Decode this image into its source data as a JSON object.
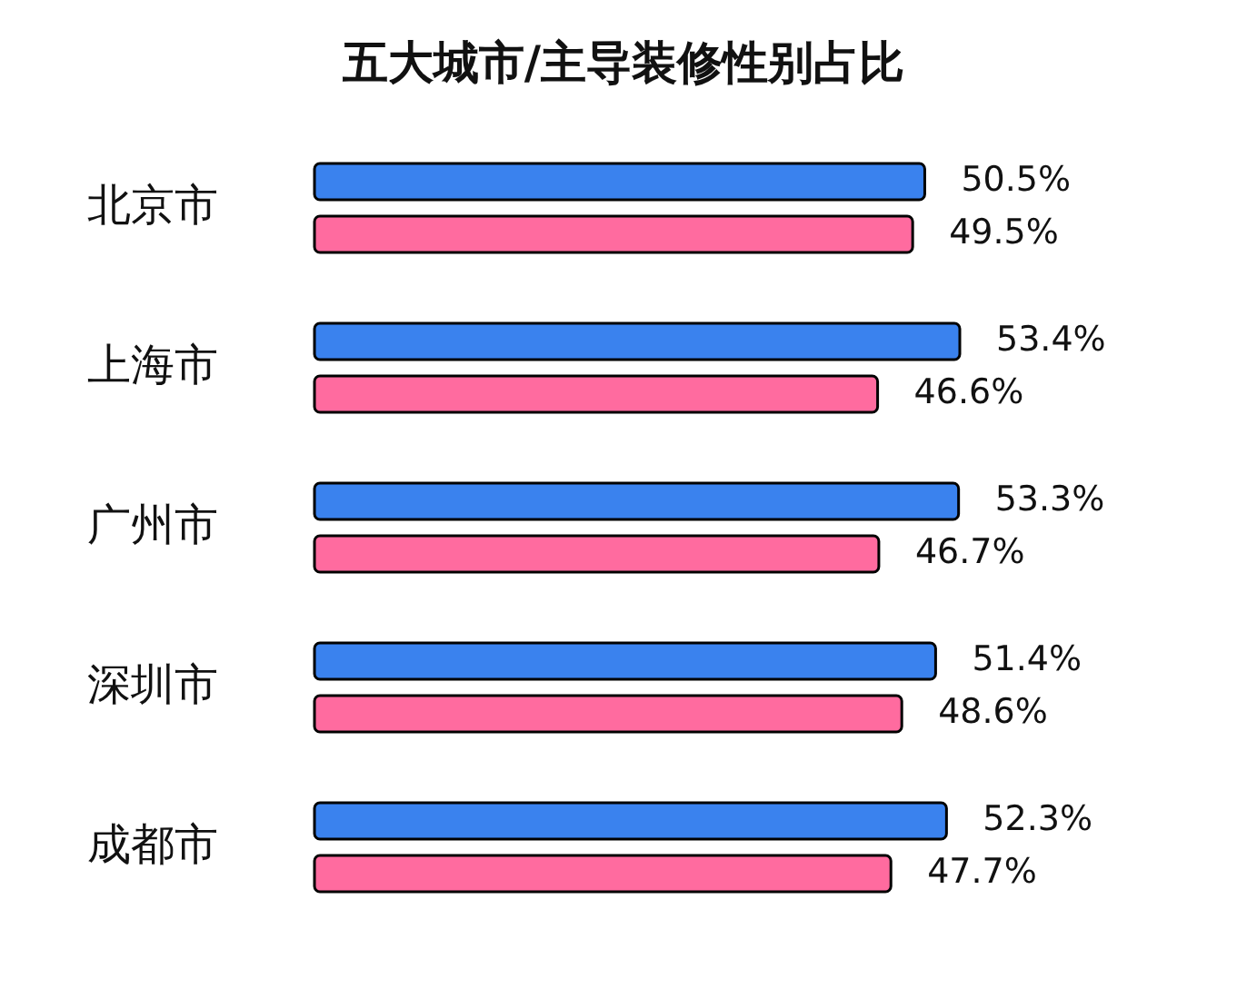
{
  "chart_data": {
    "type": "bar",
    "orientation": "horizontal",
    "title": "五大城市/主导装修性别占比",
    "categories": [
      "北京市",
      "上海市",
      "广州市",
      "深圳市",
      "成都市"
    ],
    "series": [
      {
        "color": "#3a82ee",
        "values": [
          50.5,
          53.4,
          53.3,
          51.4,
          52.3
        ],
        "value_labels": [
          "50.5%",
          "53.4%",
          "53.3%",
          "51.4%",
          "52.3%"
        ]
      },
      {
        "color": "#ff6b9f",
        "values": [
          49.5,
          46.6,
          46.7,
          48.6,
          47.7
        ],
        "value_labels": [
          "49.5%",
          "46.6%",
          "46.7%",
          "48.6%",
          "47.7%"
        ]
      }
    ]
  }
}
